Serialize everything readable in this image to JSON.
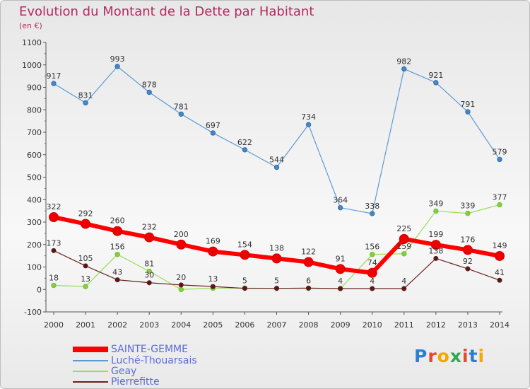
{
  "title": "Evolution du Montant de la Dette par Habitant",
  "subtitle": "(en €)",
  "logo": "Proxiti",
  "chart_data": {
    "type": "line",
    "title": "Evolution du Montant de la Dette par Habitant",
    "subtitle": "(en €)",
    "x": [
      "2000",
      "2001",
      "2002",
      "2003",
      "2004",
      "2005",
      "2006",
      "2007",
      "2008",
      "2009",
      "2010",
      "2011",
      "2012",
      "2013",
      "2014"
    ],
    "ylim": [
      -100,
      1100
    ],
    "yticks": [
      -100,
      0,
      100,
      200,
      300,
      400,
      500,
      600,
      700,
      800,
      900,
      1000,
      1100
    ],
    "grid": false,
    "legend_position": "bottom-left",
    "series": [
      {
        "name": "SAINTE-GEMME",
        "color": "#ff0000",
        "values": [
          322,
          292,
          260,
          232,
          200,
          169,
          154,
          138,
          122,
          91,
          74,
          225,
          199,
          176,
          149
        ]
      },
      {
        "name": "Luché-Thouarsais",
        "color": "#5b9bd5",
        "values": [
          917,
          831,
          993,
          878,
          781,
          697,
          622,
          544,
          734,
          364,
          338,
          982,
          921,
          791,
          579
        ]
      },
      {
        "name": "Geay",
        "color": "#99dd55",
        "values": [
          18,
          13,
          156,
          81,
          0,
          6,
          6,
          5,
          5,
          4,
          156,
          159,
          349,
          339,
          377
        ]
      },
      {
        "name": "Pierrefitte",
        "color": "#7b2a2a",
        "values": [
          173,
          105,
          43,
          30,
          20,
          13,
          5,
          5,
          6,
          4,
          4,
          4,
          138,
          92,
          41
        ]
      }
    ],
    "point_labels": {
      "SAINTE-GEMME": [
        "322",
        "292",
        "260",
        "232",
        "200",
        "169",
        "154",
        "138",
        "122",
        "91",
        "74",
        "225",
        "199",
        "176",
        "149"
      ],
      "Luché-Thouarsais": [
        "917",
        "831",
        "993",
        "878",
        "781",
        "697",
        "622",
        "544",
        "734",
        "364",
        "338",
        "982",
        "921",
        "791",
        "579"
      ],
      "Geay": [
        "18",
        "13",
        "156",
        "81",
        "",
        "",
        "",
        "",
        "",
        "",
        "156",
        "159",
        "349",
        "339",
        "377"
      ],
      "Pierrefitte": [
        "173",
        "105",
        "43",
        "30",
        "20",
        "13",
        "5",
        "5",
        "6",
        "4",
        "4",
        "4",
        "138",
        "92",
        "41"
      ]
    }
  }
}
